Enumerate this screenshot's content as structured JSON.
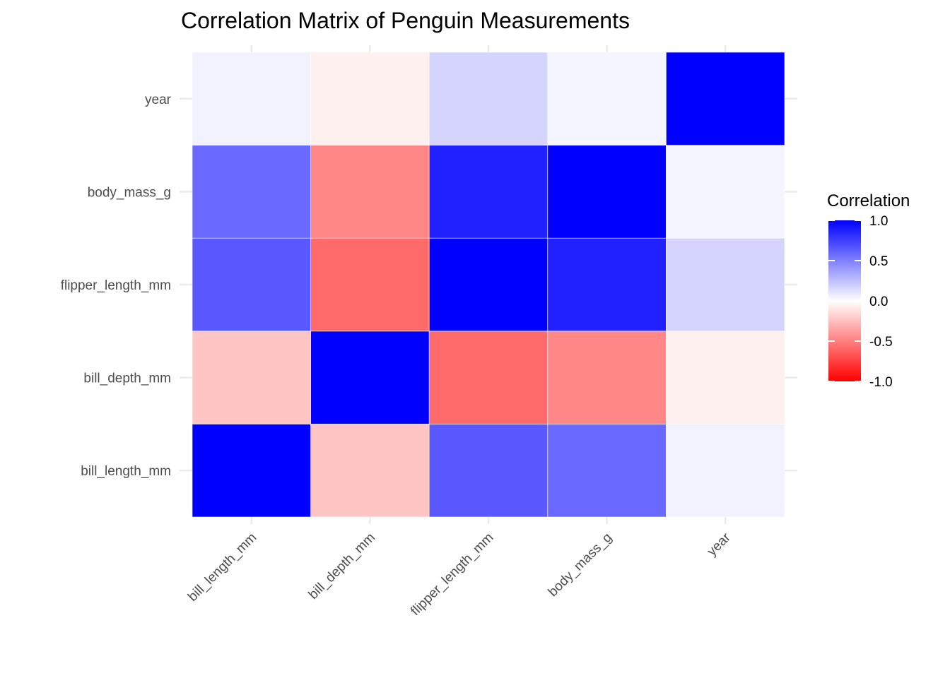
{
  "chart_data": {
    "type": "heatmap",
    "title": "Correlation Matrix of Penguin Measurements",
    "xlabel": "",
    "ylabel": "",
    "x_categories": [
      "bill_length_mm",
      "bill_depth_mm",
      "flipper_length_mm",
      "body_mass_g",
      "year"
    ],
    "y_categories": [
      "bill_length_mm",
      "bill_depth_mm",
      "flipper_length_mm",
      "body_mass_g",
      "year"
    ],
    "matrix": [
      [
        1.0,
        -0.23,
        0.65,
        0.59,
        0.05
      ],
      [
        -0.23,
        1.0,
        -0.58,
        -0.47,
        -0.06
      ],
      [
        0.65,
        -0.58,
        1.0,
        0.87,
        0.17
      ],
      [
        0.59,
        -0.47,
        0.87,
        1.0,
        0.04
      ],
      [
        0.05,
        -0.06,
        0.17,
        0.04,
        1.0
      ]
    ],
    "color_scale": {
      "low": "#ff0000",
      "mid": "#ffffff",
      "high": "#0000ff",
      "limits": [
        -1,
        1
      ]
    },
    "legend": {
      "title": "Correlation",
      "position": "right",
      "breaks": [
        1.0,
        0.5,
        0.0,
        -0.5,
        -1.0
      ],
      "labels": [
        "1.0",
        "0.5",
        "0.0",
        "-0.5",
        "-1.0"
      ]
    },
    "grid": true
  }
}
